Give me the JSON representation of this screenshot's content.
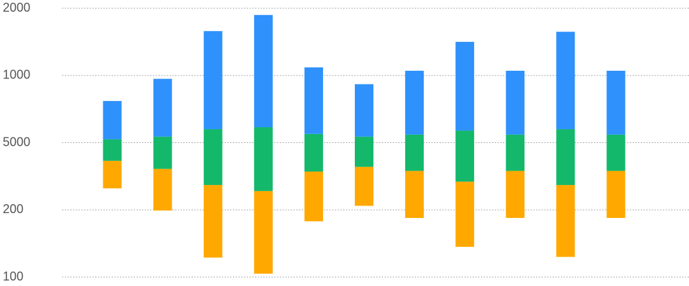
{
  "chart_data": {
    "type": "floating-stacked-bar",
    "categories": [
      null,
      null,
      null,
      null,
      null,
      null,
      null,
      null,
      null,
      null,
      null
    ],
    "base": [
      1.32,
      0.99,
      0.29,
      0.05,
      0.83,
      1.06,
      0.88,
      0.45,
      0.88,
      0.3,
      0.88
    ],
    "series": [
      {
        "color": "#ffa800",
        "values": [
          0.41,
          0.62,
          1.08,
          1.23,
          0.74,
          0.58,
          0.7,
          0.97,
          0.7,
          1.07,
          0.7
        ]
      },
      {
        "color": "#13b86b",
        "values": [
          0.32,
          0.48,
          0.83,
          0.95,
          0.56,
          0.45,
          0.54,
          0.76,
          0.54,
          0.83,
          0.54
        ]
      },
      {
        "color": "#2f91fb",
        "values": [
          0.57,
          0.86,
          1.46,
          1.67,
          0.99,
          0.78,
          0.95,
          1.32,
          0.95,
          1.45,
          0.95
        ]
      }
    ],
    "ylim": [
      0,
      4
    ],
    "yticks": [
      {
        "value": 0,
        "label": "100"
      },
      {
        "value": 1,
        "label": "200"
      },
      {
        "value": 2,
        "label": "5000"
      },
      {
        "value": 3,
        "label": "1000"
      },
      {
        "value": 4,
        "label": "2000"
      }
    ],
    "grid": true
  }
}
